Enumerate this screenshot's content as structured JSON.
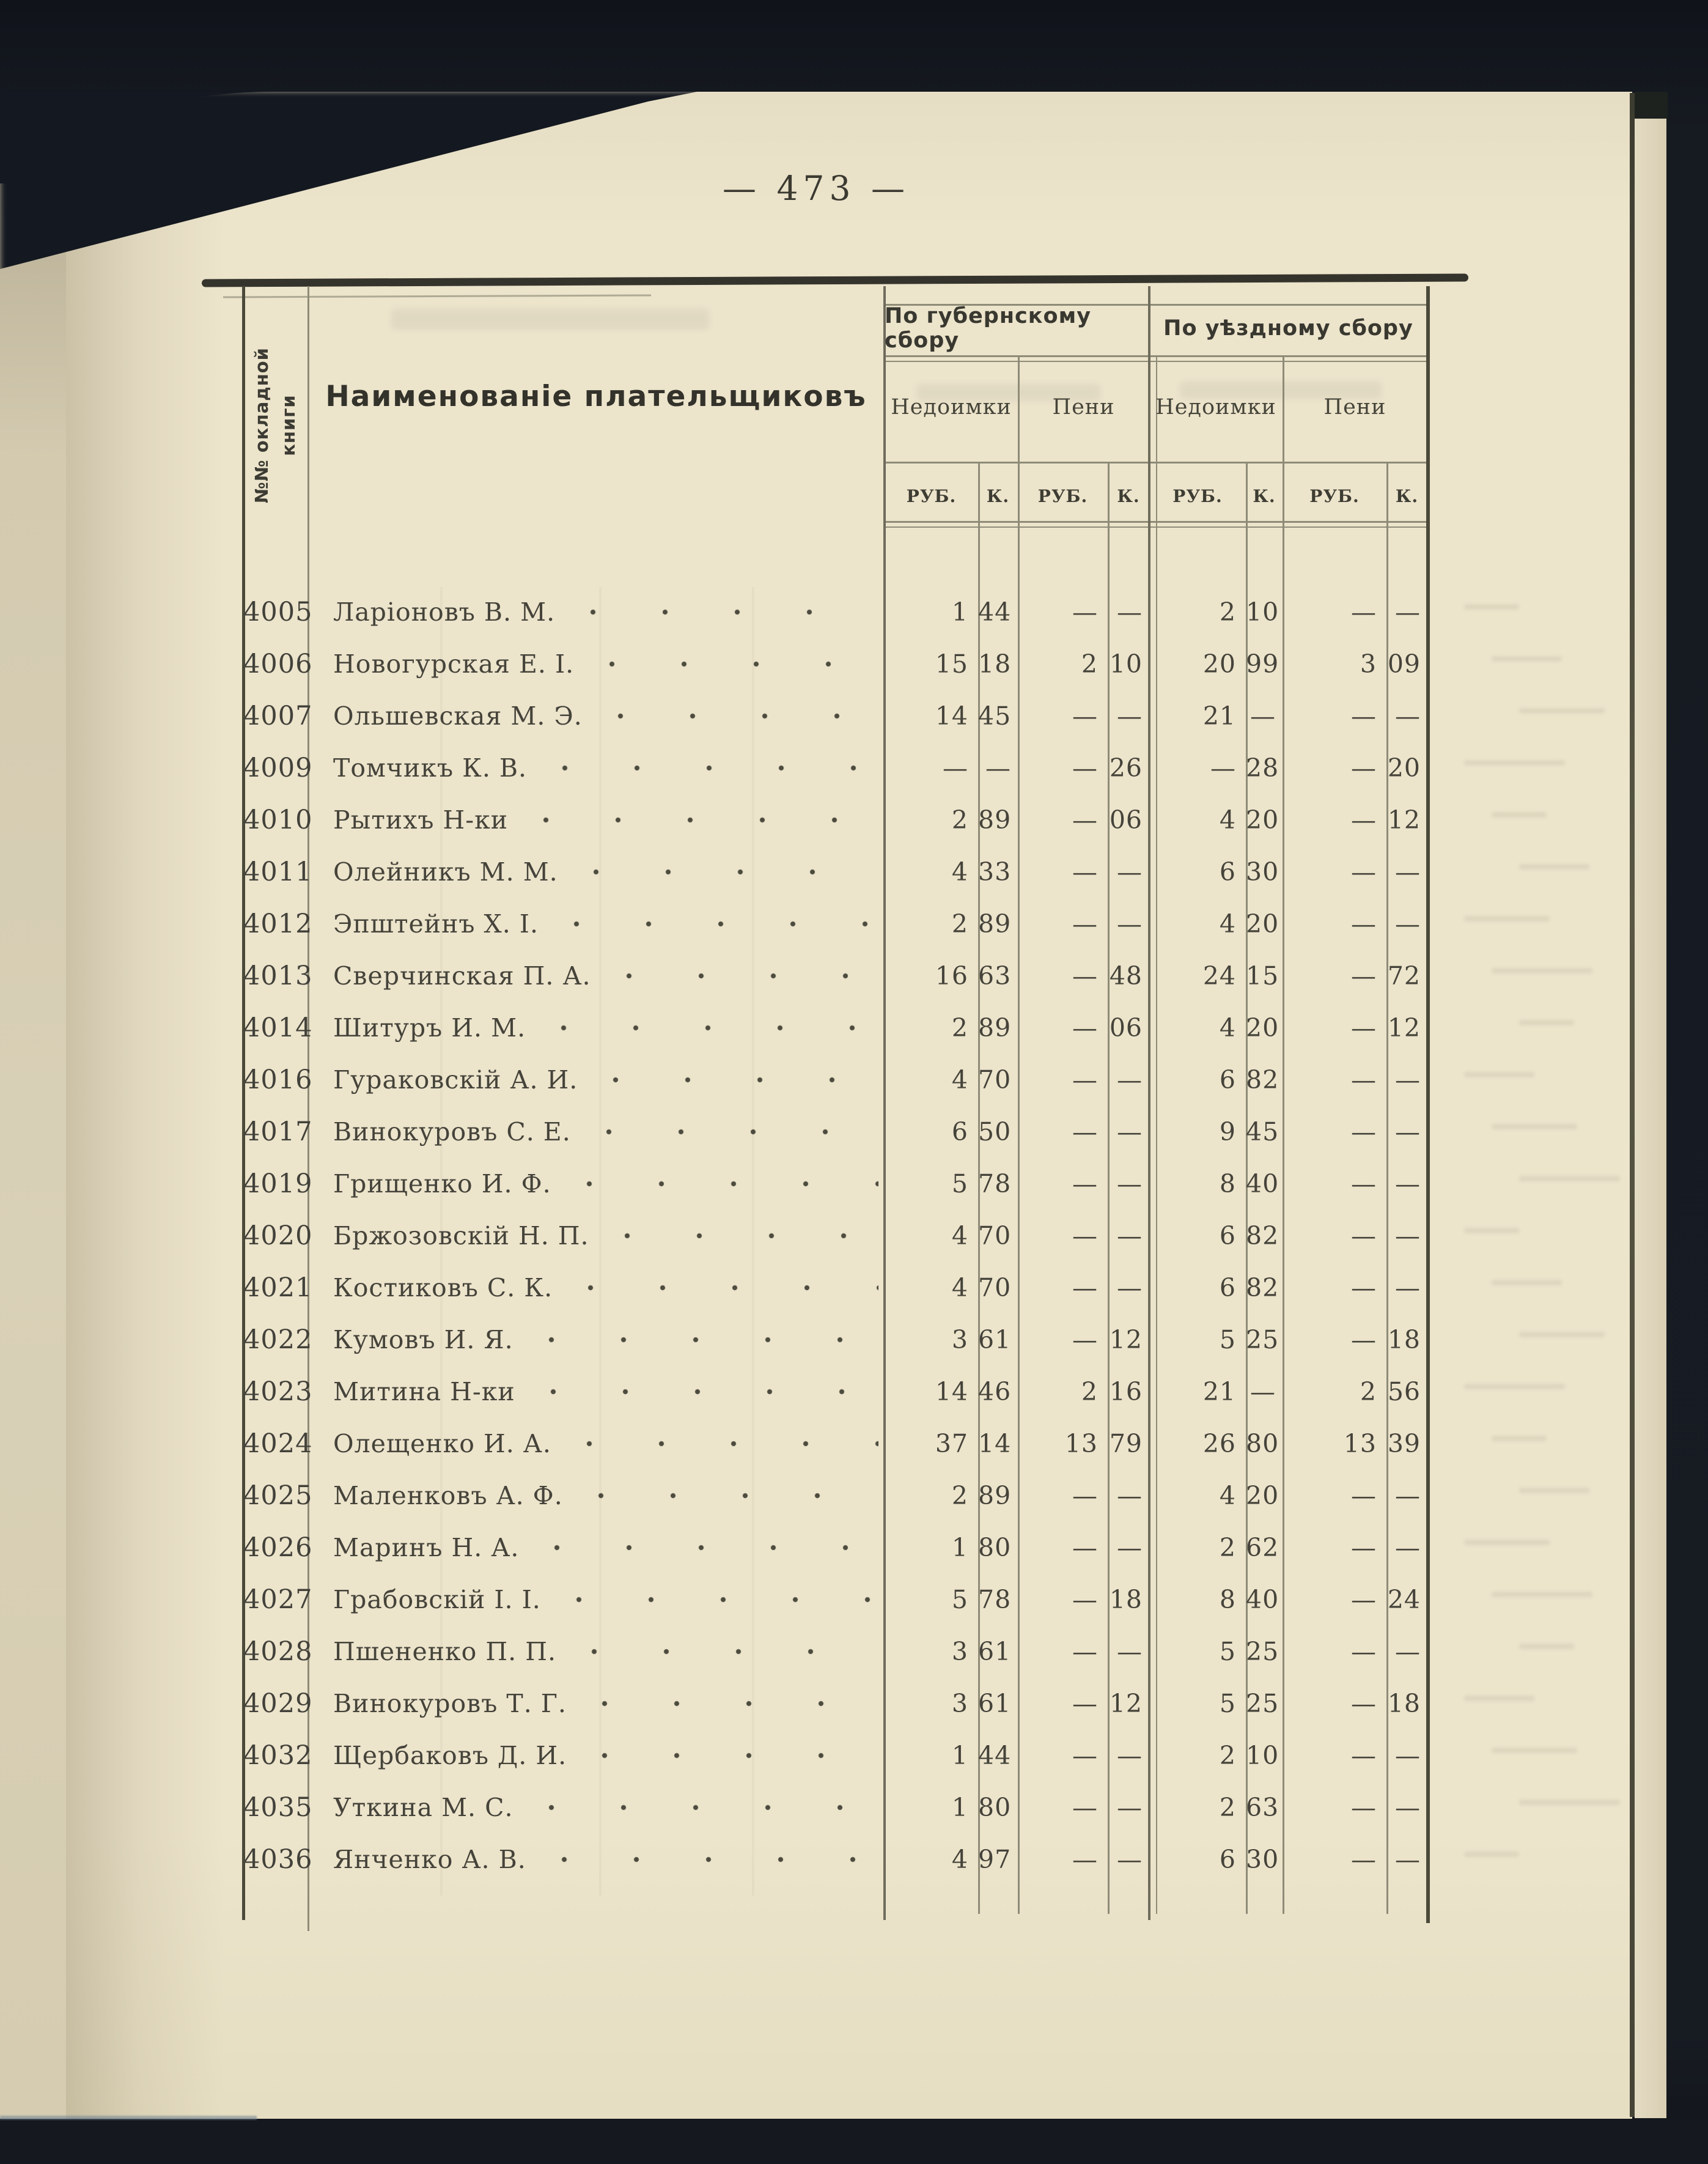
{
  "page": {
    "number_display": "— 473 —"
  },
  "table": {
    "id_column_header_line1": "№№ окладной",
    "id_column_header_line2": "книги",
    "name_column_header": "Наименованіе плательщиковъ",
    "group_headers": [
      "По губернскому сбору",
      "По уѣздному сбору"
    ],
    "sub_headers": [
      "Недоимки",
      "Пени",
      "Недоимки",
      "Пени"
    ],
    "unit_headers": [
      "РУБ.",
      "К.",
      "РУБ.",
      "К.",
      "РУБ.",
      "К.",
      "РУБ.",
      "К."
    ],
    "rows": [
      {
        "id": "4005",
        "name": "Ларіоновъ В. М.",
        "values": [
          "1",
          "44",
          "—",
          "—",
          "2",
          "10",
          "—",
          "—"
        ]
      },
      {
        "id": "4006",
        "name": "Новогурская Е. І.",
        "values": [
          "15",
          "18",
          "2",
          "10",
          "20",
          "99",
          "3",
          "09"
        ]
      },
      {
        "id": "4007",
        "name": "Ольшевская М. Э.",
        "values": [
          "14",
          "45",
          "—",
          "—",
          "21",
          "—",
          "—",
          "—"
        ]
      },
      {
        "id": "4009",
        "name": "Томчикъ К. В.",
        "values": [
          "—",
          "—",
          "—",
          "26",
          "—",
          "28",
          "—",
          "20"
        ]
      },
      {
        "id": "4010",
        "name": "Рытихъ Н-ки",
        "values": [
          "2",
          "89",
          "—",
          "06",
          "4",
          "20",
          "—",
          "12"
        ]
      },
      {
        "id": "4011",
        "name": "Олейникъ М. М.",
        "values": [
          "4",
          "33",
          "—",
          "—",
          "6",
          "30",
          "—",
          "—"
        ]
      },
      {
        "id": "4012",
        "name": "Эпштейнъ Х. І.",
        "values": [
          "2",
          "89",
          "—",
          "—",
          "4",
          "20",
          "—",
          "—"
        ]
      },
      {
        "id": "4013",
        "name": "Сверчинская П. А.",
        "values": [
          "16",
          "63",
          "—",
          "48",
          "24",
          "15",
          "—",
          "72"
        ]
      },
      {
        "id": "4014",
        "name": "Шитуръ И. М.",
        "values": [
          "2",
          "89",
          "—",
          "06",
          "4",
          "20",
          "—",
          "12"
        ]
      },
      {
        "id": "4016",
        "name": "Гураковскій А. И.",
        "values": [
          "4",
          "70",
          "—",
          "—",
          "6",
          "82",
          "—",
          "—"
        ]
      },
      {
        "id": "4017",
        "name": "Винокуровъ С. Е.",
        "values": [
          "6",
          "50",
          "—",
          "—",
          "9",
          "45",
          "—",
          "—"
        ]
      },
      {
        "id": "4019",
        "name": "Грищенко И. Ф.",
        "values": [
          "5",
          "78",
          "—",
          "—",
          "8",
          "40",
          "—",
          "—"
        ]
      },
      {
        "id": "4020",
        "name": "Бржозовскій Н. П.",
        "values": [
          "4",
          "70",
          "—",
          "—",
          "6",
          "82",
          "—",
          "—"
        ]
      },
      {
        "id": "4021",
        "name": "Костиковъ С. К.",
        "values": [
          "4",
          "70",
          "—",
          "—",
          "6",
          "82",
          "—",
          "—"
        ]
      },
      {
        "id": "4022",
        "name": "Кумовъ И. Я.",
        "values": [
          "3",
          "61",
          "—",
          "12",
          "5",
          "25",
          "—",
          "18"
        ]
      },
      {
        "id": "4023",
        "name": "Митина Н-ки",
        "values": [
          "14",
          "46",
          "2",
          "16",
          "21",
          "—",
          "2",
          "56"
        ]
      },
      {
        "id": "4024",
        "name": "Олещенко И. А.",
        "values": [
          "37",
          "14",
          "13",
          "79",
          "26",
          "80",
          "13",
          "39"
        ]
      },
      {
        "id": "4025",
        "name": "Маленковъ А. Ф.",
        "values": [
          "2",
          "89",
          "—",
          "—",
          "4",
          "20",
          "—",
          "—"
        ]
      },
      {
        "id": "4026",
        "name": "Маринъ Н. А.",
        "values": [
          "1",
          "80",
          "—",
          "—",
          "2",
          "62",
          "—",
          "—"
        ]
      },
      {
        "id": "4027",
        "name": "Грабовскій І. І.",
        "values": [
          "5",
          "78",
          "—",
          "18",
          "8",
          "40",
          "—",
          "24"
        ]
      },
      {
        "id": "4028",
        "name": "Пшененко П. П.",
        "values": [
          "3",
          "61",
          "—",
          "—",
          "5",
          "25",
          "—",
          "—"
        ]
      },
      {
        "id": "4029",
        "name": "Винокуровъ Т. Г.",
        "values": [
          "3",
          "61",
          "—",
          "12",
          "5",
          "25",
          "—",
          "18"
        ]
      },
      {
        "id": "4032",
        "name": "Щербаковъ Д. И.",
        "values": [
          "1",
          "44",
          "—",
          "—",
          "2",
          "10",
          "—",
          "—"
        ]
      },
      {
        "id": "4035",
        "name": "Уткина М. С.",
        "values": [
          "1",
          "80",
          "—",
          "—",
          "2",
          "63",
          "—",
          "—"
        ]
      },
      {
        "id": "4036",
        "name": "Янченко А. В.",
        "values": [
          "4",
          "97",
          "—",
          "—",
          "6",
          "30",
          "—",
          "—"
        ]
      }
    ]
  }
}
